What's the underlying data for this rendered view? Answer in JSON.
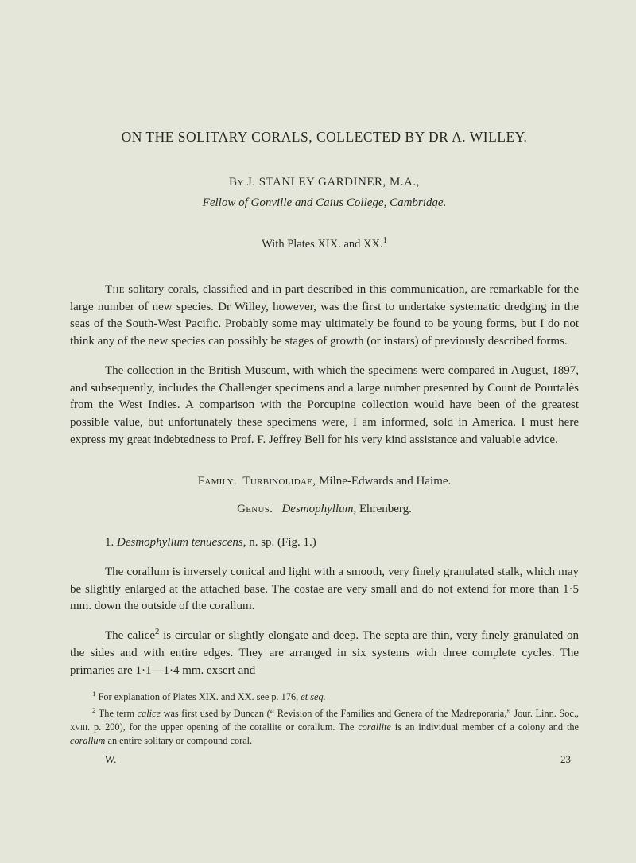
{
  "title": "ON THE SOLITARY CORALS, COLLECTED BY DR A. WILLEY.",
  "byline_by": "By",
  "byline_name": "J. STANLEY GARDINER, M.A.,",
  "affiliation": "Fellow of Gonville and Caius College, Cambridge.",
  "plates_line_pre": "With Plates XIX. and XX.",
  "plates_sup": "1",
  "para1_lead": "The",
  "para1_rest": " solitary corals, classified and in part described in this communication, are remarkable for the large number of new species. Dr Willey, however, was the first to undertake systematic dredging in the seas of the South-West Pacific. Probably some may ultimately be found to be young forms, but I do not think any of the new species can possibly be stages of growth (or instars) of previously described forms.",
  "para2": "The collection in the British Museum, with which the specimens were compared in August, 1897, and subsequently, includes the Challenger specimens and a large number presented by Count de Pourtalès from the West Indies. A comparison with the Porcupine collection would have been of the greatest possible value, but un­fortunately these specimens were, I am informed, sold in America. I must here express my great indebtedness to Prof. F. Jeffrey Bell for his very kind assistance and valuable advice.",
  "family_sc": "Family.",
  "family_name": "Turbinolidae,",
  "family_rest": " Milne-Edwards and Haime.",
  "genus_sc": "Genus.",
  "genus_it": "Desmophyllum",
  "genus_rest": ", Ehrenberg.",
  "species_num": "1.   ",
  "species_it": "Desmophyllum tenuescens",
  "species_rest": ", n. sp.   (Fig. 1.)",
  "para3": "The corallum is inversely conical and light with a smooth, very finely granulated stalk, which may be slightly enlarged at the attached base. The costae are very small and do not extend for more than 1·5 mm. down the outside of the corallum.",
  "para4_pre": "The calice",
  "para4_sup": "2",
  "para4_post": " is circular or slightly elongate and deep. The septa are thin, very finely granulated on the sides and with entire edges. They are arranged in six systems with three complete cycles. The primaries are 1·1—1·4 mm. exsert and",
  "fn1_sup": "1",
  "fn1_text_a": " For explanation of Plates XIX. and XX. see p. 176, ",
  "fn1_it": "et seq.",
  "fn2_sup": "2",
  "fn2_a": " The term ",
  "fn2_it1": "calice",
  "fn2_b": " was first used by Duncan (“ Revision of the Families and Genera of the Madreporaria,” Jour. Linn. Soc., ",
  "fn2_sc": "xviii.",
  "fn2_c": " p. 200), for the upper opening of the corallite or corallum. The ",
  "fn2_it2": "corallite",
  "fn2_d": " is an individual member of a colony and the ",
  "fn2_it3": "corallum",
  "fn2_e": " an entire solitary or compound coral.",
  "sig_left": "W.",
  "sig_right": "23"
}
